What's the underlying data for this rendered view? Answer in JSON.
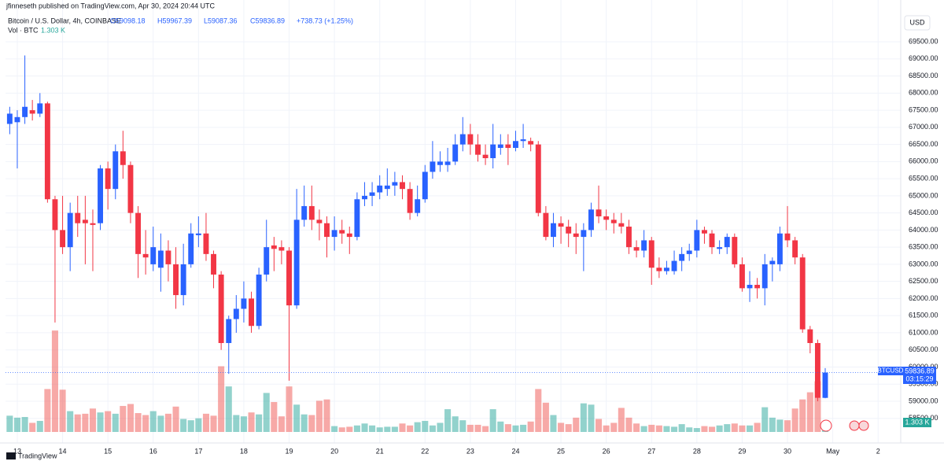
{
  "header": {
    "published": "jfinneseth published on TradingView.com, Apr 30, 2024 20:44 UTC",
    "legend": [
      "O59098.18",
      "H59967.39",
      "L59087.36",
      "C59836.89",
      "+738.73 (+1.25%)"
    ],
    "volume_name": "Vol · BTC",
    "volume_value": "1.303 K",
    "currency": "USD",
    "symbol": "BTCUSD",
    "countdown": "03:15:29",
    "brand": "TradingView"
  },
  "chart_data": {
    "type": "candlestick",
    "title": "Bitcoin / U.S. Dollar, 4h, COINBASE",
    "x": [
      12.833,
      13,
      13.167,
      13.333,
      13.5,
      13.667,
      13.833,
      14,
      14.167,
      14.333,
      14.5,
      14.667,
      14.833,
      15,
      15.167,
      15.333,
      15.5,
      15.667,
      15.833,
      16,
      16.167,
      16.333,
      16.5,
      16.667,
      16.833,
      17,
      17.167,
      17.333,
      17.5,
      17.667,
      17.833,
      18,
      18.167,
      18.333,
      18.5,
      18.667,
      18.833,
      19,
      19.167,
      19.333,
      19.5,
      19.667,
      19.833,
      20,
      20.167,
      20.333,
      20.5,
      20.667,
      20.833,
      21,
      21.167,
      21.333,
      21.5,
      21.667,
      21.833,
      22,
      22.167,
      22.333,
      22.5,
      22.667,
      22.833,
      23,
      23.167,
      23.333,
      23.5,
      23.667,
      23.833,
      24,
      24.167,
      24.333,
      24.5,
      24.667,
      24.833,
      25,
      25.167,
      25.333,
      25.5,
      25.667,
      25.833,
      26,
      26.167,
      26.333,
      26.5,
      26.667,
      26.833,
      27,
      27.167,
      27.333,
      27.5,
      27.667,
      27.833,
      28,
      28.167,
      28.333,
      28.5,
      28.667,
      28.833,
      29,
      29.167,
      29.333,
      29.5,
      29.667,
      29.833,
      30,
      30.167,
      30.333,
      30.5,
      30.667,
      30.833
    ],
    "open": [
      67100,
      67150,
      67300,
      67500,
      67400,
      67700,
      64900,
      64000,
      63500,
      64500,
      64300,
      64200,
      64200,
      65800,
      65200,
      66300,
      65900,
      64500,
      63300,
      63000,
      62900,
      63400,
      63000,
      62100,
      63000,
      63850,
      63900,
      63300,
      62700,
      60700,
      61400,
      61700,
      62000,
      61200,
      62700,
      63550,
      63500,
      63400,
      61800,
      64300,
      64700,
      64300,
      64200,
      63800,
      64000,
      63900,
      63800,
      64900,
      65000,
      65100,
      65200,
      65300,
      65400,
      65200,
      64500,
      64900,
      65700,
      65900,
      65900,
      66000,
      66500,
      66800,
      66500,
      66200,
      66100,
      66400,
      66500,
      66400,
      66600,
      66600,
      66500,
      64500,
      63800,
      64200,
      64100,
      63900,
      63800,
      64000,
      64600,
      64400,
      64300,
      64200,
      64100,
      63500,
      63400,
      63700,
      62900,
      62800,
      62800,
      63100,
      63300,
      63400,
      64000,
      63900,
      63450,
      63500,
      63800,
      63000,
      62300,
      62400,
      62300,
      63000,
      63000,
      63900,
      63700,
      63200,
      61100,
      60700,
      59098.18
    ],
    "high": [
      67600,
      67500,
      69100,
      67800,
      68000,
      67750,
      65000,
      65000,
      64800,
      65000,
      65000,
      64600,
      65900,
      66000,
      66500,
      66900,
      66000,
      64700,
      64000,
      64100,
      63900,
      63700,
      63500,
      63600,
      64200,
      64400,
      64500,
      63400,
      62800,
      61500,
      62100,
      62500,
      62200,
      62900,
      64300,
      63800,
      63700,
      63500,
      65200,
      65300,
      65300,
      64600,
      64400,
      64400,
      64300,
      64100,
      65100,
      65400,
      65400,
      65600,
      65800,
      65700,
      65600,
      65400,
      65300,
      65900,
      66600,
      66300,
      66400,
      66800,
      67300,
      67100,
      66800,
      66500,
      67100,
      66800,
      66800,
      66900,
      67100,
      66700,
      66600,
      64700,
      64500,
      64400,
      64300,
      64200,
      64200,
      64800,
      65300,
      64600,
      64500,
      64500,
      64300,
      63700,
      64000,
      63800,
      63200,
      63100,
      63400,
      63500,
      63600,
      64300,
      64100,
      64000,
      63700,
      63900,
      63900,
      63200,
      62800,
      62600,
      63300,
      63200,
      64100,
      64700,
      63800,
      63300,
      61200,
      60800,
      59967.39
    ],
    "low": [
      66800,
      65800,
      67100,
      67200,
      67300,
      64800,
      61300,
      63300,
      62800,
      63800,
      63000,
      62800,
      64000,
      64600,
      64900,
      65500,
      64200,
      62600,
      62700,
      62800,
      62200,
      62500,
      61700,
      61800,
      62900,
      63500,
      63100,
      62300,
      60500,
      59800,
      61000,
      61300,
      61000,
      61100,
      62500,
      62800,
      63000,
      59600,
      61700,
      64100,
      64000,
      63700,
      63200,
      63400,
      63600,
      63300,
      63700,
      64700,
      64700,
      64900,
      65000,
      65000,
      64900,
      64300,
      64400,
      64800,
      65500,
      65700,
      65700,
      65900,
      66300,
      66200,
      66000,
      65900,
      65800,
      66200,
      65900,
      66300,
      66400,
      66300,
      64400,
      63700,
      63500,
      63600,
      63500,
      63300,
      62800,
      63800,
      64200,
      64000,
      63900,
      63900,
      63300,
      63200,
      63200,
      62400,
      62600,
      62700,
      62700,
      62800,
      63100,
      63200,
      63600,
      63300,
      63300,
      63300,
      62900,
      62200,
      61900,
      62000,
      61800,
      62500,
      62800,
      63500,
      63000,
      61000,
      60400,
      59000,
      59087.36
    ],
    "close": [
      67400,
      67300,
      67600,
      67400,
      67700,
      64900,
      64000,
      63500,
      64500,
      64200,
      64200,
      64150,
      65800,
      65200,
      66300,
      65900,
      64500,
      63300,
      63200,
      63500,
      63400,
      63000,
      62100,
      63000,
      63900,
      63900,
      63300,
      62700,
      60700,
      61400,
      61700,
      62000,
      61200,
      62700,
      63500,
      63450,
      63400,
      61800,
      64300,
      64700,
      64300,
      64200,
      63800,
      64000,
      63900,
      63800,
      64900,
      65000,
      65100,
      65300,
      65300,
      65400,
      65200,
      64500,
      64900,
      65700,
      66000,
      66000,
      66000,
      66500,
      66800,
      66500,
      66200,
      66100,
      66500,
      66500,
      66400,
      66600,
      66650,
      66500,
      64500,
      63800,
      64200,
      64100,
      63900,
      63800,
      64000,
      64600,
      64400,
      64300,
      64200,
      64100,
      63500,
      63400,
      63700,
      62900,
      62800,
      62900,
      63100,
      63300,
      63400,
      64000,
      63900,
      63500,
      63500,
      63800,
      63000,
      62300,
      62400,
      62300,
      63000,
      63100,
      63900,
      63700,
      63200,
      61100,
      60700,
      59100,
      59836.89
    ],
    "volume": [
      2500,
      2200,
      2300,
      1400,
      1700,
      6600,
      15600,
      6500,
      3200,
      2700,
      2800,
      3600,
      3000,
      3200,
      2800,
      4000,
      4300,
      2900,
      2600,
      3200,
      2500,
      2800,
      3900,
      2000,
      1800,
      2100,
      2800,
      2500,
      10100,
      7000,
      2600,
      2400,
      3000,
      2700,
      6000,
      4600,
      2400,
      7000,
      4200,
      2700,
      2600,
      4800,
      5000,
      900,
      700,
      800,
      1000,
      1300,
      1000,
      700,
      800,
      800,
      1300,
      1000,
      1500,
      1700,
      1000,
      1400,
      3500,
      2400,
      1800,
      1100,
      1100,
      900,
      3500,
      1600,
      1200,
      1000,
      1100,
      1600,
      6600,
      4500,
      2600,
      1400,
      1200,
      2200,
      4400,
      4200,
      2000,
      1000,
      1400,
      3700,
      2200,
      1300,
      900,
      1100,
      1000,
      900,
      800,
      1200,
      700,
      600,
      900,
      800,
      1000,
      1200,
      1300,
      1000,
      1000,
      1400,
      3800,
      2200,
      1900,
      1800,
      3600,
      5000,
      6100,
      7800,
      1303
    ],
    "up_color": "#2962ff",
    "down_color": "#f23645",
    "volume_up_color": "#26a69a",
    "volume_down_color": "#ef5350",
    "xlim": [
      12.74,
      32.5
    ],
    "xticks": [
      13,
      14,
      15,
      16,
      17,
      18,
      19,
      20,
      21,
      22,
      23,
      24,
      25,
      26,
      27,
      28,
      29,
      30,
      {
        "value": 31,
        "label": "May"
      },
      {
        "value": 32,
        "label": "2"
      }
    ],
    "ylim": [
      57850,
      70260
    ],
    "yticks": [
      {
        "value": 58500,
        "label": "58500.00"
      },
      {
        "value": 59000,
        "label": "59000.00"
      },
      {
        "value": 59500,
        "label": "59500.00"
      },
      {
        "value": 60000,
        "label": "60000.00"
      },
      {
        "value": 60500,
        "label": "60500.00"
      },
      {
        "value": 61000,
        "label": "61000.00"
      },
      {
        "value": 61500,
        "label": "61500.00"
      },
      {
        "value": 62000,
        "label": "62000.00"
      },
      {
        "value": 62500,
        "label": "62500.00"
      },
      {
        "value": 63000,
        "label": "63000.00"
      },
      {
        "value": 63500,
        "label": "63500.00"
      },
      {
        "value": 64000,
        "label": "64000.00"
      },
      {
        "value": 64500,
        "label": "64500.00"
      },
      {
        "value": 65000,
        "label": "65000.00"
      },
      {
        "value": 65500,
        "label": "65500.00"
      },
      {
        "value": 66000,
        "label": "66000.00"
      },
      {
        "value": 66500,
        "label": "66500.00"
      },
      {
        "value": 67000,
        "label": "67000.00"
      },
      {
        "value": 67500,
        "label": "67500.00"
      },
      {
        "value": 68000,
        "label": "68000.00"
      },
      {
        "value": 68500,
        "label": "68500.00"
      },
      {
        "value": 69000,
        "label": "69000.00"
      },
      {
        "value": 69500,
        "label": "69500.00"
      }
    ],
    "y2lim": [
      0,
      64000
    ],
    "grid": true
  }
}
